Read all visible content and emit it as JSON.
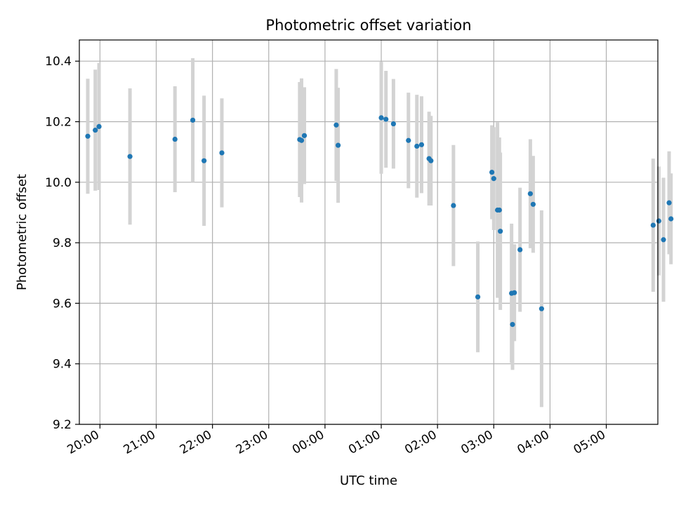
{
  "chart_data": {
    "type": "scatter",
    "title": "Photometric offset variation",
    "xlabel": "UTC time",
    "ylabel": "Photometric offset",
    "x_axis": "time",
    "xlim": [
      "19:38",
      "05:55"
    ],
    "ylim": [
      9.2,
      10.47
    ],
    "yticks": [
      9.2,
      9.4,
      9.6,
      9.8,
      10.0,
      10.2,
      10.4
    ],
    "xticks": [
      "20:00",
      "21:00",
      "22:00",
      "23:00",
      "00:00",
      "01:00",
      "02:00",
      "03:00",
      "04:00",
      "05:00"
    ],
    "grid": true,
    "colors": {
      "points": "#1f77b4",
      "errorbars": "#d3d3d3",
      "grid": "#b0b0b0"
    },
    "points": [
      {
        "x": "19:47",
        "y": 10.152,
        "err": 0.19
      },
      {
        "x": "19:55",
        "y": 10.172,
        "err": 0.2
      },
      {
        "x": "19:59",
        "y": 10.184,
        "err": 0.21
      },
      {
        "x": "20:32",
        "y": 10.085,
        "err": 0.225
      },
      {
        "x": "21:20",
        "y": 10.142,
        "err": 0.175
      },
      {
        "x": "21:39",
        "y": 10.205,
        "err": 0.205
      },
      {
        "x": "21:51",
        "y": 10.071,
        "err": 0.215
      },
      {
        "x": "22:10",
        "y": 10.097,
        "err": 0.18
      },
      {
        "x": "23:33",
        "y": 10.141,
        "err": 0.19
      },
      {
        "x": "23:35",
        "y": 10.138,
        "err": 0.205
      },
      {
        "x": "23:38",
        "y": 10.154,
        "err": 0.16
      },
      {
        "x": "00:12",
        "y": 10.189,
        "err": 0.185
      },
      {
        "x": "00:14",
        "y": 10.122,
        "err": 0.19
      },
      {
        "x": "01:00",
        "y": 10.213,
        "err": 0.185
      },
      {
        "x": "01:05",
        "y": 10.208,
        "err": 0.16
      },
      {
        "x": "01:13",
        "y": 10.193,
        "err": 0.148
      },
      {
        "x": "01:29",
        "y": 10.138,
        "err": 0.158
      },
      {
        "x": "01:38",
        "y": 10.119,
        "err": 0.17
      },
      {
        "x": "01:43",
        "y": 10.124,
        "err": 0.16
      },
      {
        "x": "01:51",
        "y": 10.078,
        "err": 0.155
      },
      {
        "x": "01:53",
        "y": 10.071,
        "err": 0.148
      },
      {
        "x": "02:17",
        "y": 9.923,
        "err": 0.2
      },
      {
        "x": "02:43",
        "y": 9.621,
        "err": 0.183
      },
      {
        "x": "02:58",
        "y": 10.033,
        "err": 0.155
      },
      {
        "x": "03:00",
        "y": 10.012,
        "err": 0.17
      },
      {
        "x": "03:04",
        "y": 9.908,
        "err": 0.29
      },
      {
        "x": "03:06",
        "y": 9.908,
        "err": 0.24
      },
      {
        "x": "03:07",
        "y": 9.838,
        "err": 0.26
      },
      {
        "x": "03:19",
        "y": 9.633,
        "err": 0.23
      },
      {
        "x": "03:20",
        "y": 9.53,
        "err": 0.15
      },
      {
        "x": "03:22",
        "y": 9.635,
        "err": 0.16
      },
      {
        "x": "03:28",
        "y": 9.777,
        "err": 0.205
      },
      {
        "x": "03:39",
        "y": 9.962,
        "err": 0.18
      },
      {
        "x": "03:42",
        "y": 9.927,
        "err": 0.16
      },
      {
        "x": "03:51",
        "y": 9.582,
        "err": 0.325
      },
      {
        "x": "05:50",
        "y": 9.858,
        "err": 0.22
      },
      {
        "x": "05:56",
        "y": 9.872,
        "err": 0.18
      },
      {
        "x": "06:01",
        "y": 9.81,
        "err": 0.205
      },
      {
        "x": "06:07",
        "y": 9.932,
        "err": 0.17
      },
      {
        "x": "06:09",
        "y": 9.879,
        "err": 0.15
      }
    ]
  }
}
